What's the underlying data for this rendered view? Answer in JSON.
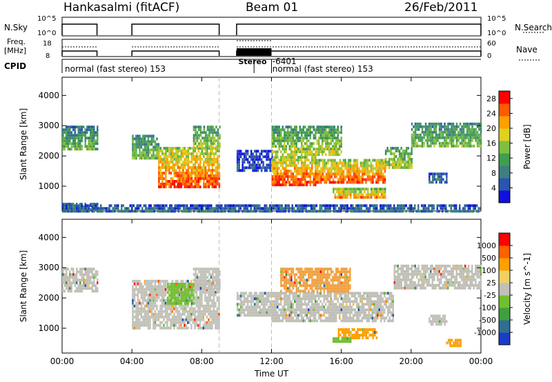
{
  "header": {
    "station": "Hankasalmi (fitACF)",
    "beam": "Beam 01",
    "date": "26/Feb/2011"
  },
  "status_panels": {
    "nsky_label": "N.Sky",
    "nsky_ticks": [
      "10^5",
      "10^0"
    ],
    "nsearch_label": "N.Search",
    "nsearch_ticks": [
      "10^5",
      "10^0"
    ],
    "freq_label_line1": "Freq.",
    "freq_label_line2": "[MHz]",
    "freq_ticks": [
      "18",
      "8"
    ],
    "nave_label": "Nave",
    "nave_ticks": [
      "60",
      "0"
    ],
    "cpid_label": "CPID",
    "cpid_segments": [
      {
        "text": "normal (fast stereo) 153",
        "start_hour": 0,
        "end_hour": 11.0
      },
      {
        "text": "Stereo",
        "start_hour": 11.0,
        "end_hour": 12.0
      },
      {
        "text": "-6401",
        "start_hour": 12.0,
        "end_hour": 12.3
      },
      {
        "text": "normal (fast stereo) 153",
        "start_hour": 12.0,
        "end_hour": 24.0
      }
    ],
    "operation_intervals": [
      [
        0,
        2.0
      ],
      [
        4.0,
        9.0
      ],
      [
        10.0,
        24.0
      ]
    ],
    "stereo_interval": [
      10.0,
      12.0
    ]
  },
  "chart_data": [
    {
      "type": "heatmap",
      "panel": "power",
      "xlabel": "Time UT",
      "ylabel": "Slant Range [km]",
      "x_ticks": [
        "00:00",
        "04:00",
        "08:00",
        "12:00",
        "16:00",
        "20:00",
        "00:00"
      ],
      "xlim": [
        0,
        24
      ],
      "ylim": [
        180,
        4600
      ],
      "y_ticks": [
        1000,
        2000,
        3000,
        4000
      ],
      "dashed_time_markers": [
        9.0,
        12.0
      ],
      "colorbar": {
        "label": "Power [dB]",
        "ticks": [
          4,
          8,
          12,
          16,
          20,
          24,
          28
        ],
        "range": [
          0,
          30
        ],
        "colors": [
          "#1010e0",
          "#2a55b0",
          "#3f7f7f",
          "#3f9f4f",
          "#7fbf3f",
          "#e0d020",
          "#ff9f00",
          "#ff5a00",
          "#ff0000"
        ]
      },
      "echo_regions": [
        {
          "t0": 0.0,
          "t1": 2.0,
          "r0": 2200,
          "r1": 3000,
          "level": 0.4
        },
        {
          "t0": 0.0,
          "t1": 2.0,
          "r0": 200,
          "r1": 450,
          "level": 0.3
        },
        {
          "t0": 4.0,
          "t1": 5.5,
          "r0": 1900,
          "r1": 2700,
          "level": 0.45
        },
        {
          "t0": 5.5,
          "t1": 9.0,
          "r0": 1000,
          "r1": 2300,
          "level": 0.85
        },
        {
          "t0": 7.5,
          "t1": 9.0,
          "r0": 2300,
          "r1": 3000,
          "level": 0.5
        },
        {
          "t0": 10.0,
          "t1": 12.0,
          "r0": 1500,
          "r1": 2200,
          "level": 0.1
        },
        {
          "t0": 12.0,
          "t1": 14.5,
          "r0": 1000,
          "r1": 2000,
          "level": 0.9
        },
        {
          "t0": 12.0,
          "t1": 16.0,
          "r0": 2000,
          "r1": 3000,
          "level": 0.55
        },
        {
          "t0": 14.5,
          "t1": 18.5,
          "r0": 1150,
          "r1": 1900,
          "level": 0.85
        },
        {
          "t0": 15.5,
          "t1": 18.5,
          "r0": 600,
          "r1": 950,
          "level": 0.8
        },
        {
          "t0": 18.5,
          "t1": 20.0,
          "r0": 1600,
          "r1": 2300,
          "level": 0.55
        },
        {
          "t0": 20.0,
          "t1": 24.0,
          "r0": 2300,
          "r1": 3100,
          "level": 0.45
        },
        {
          "t0": 21.0,
          "t1": 22.0,
          "r0": 1100,
          "r1": 1450,
          "level": 0.2
        },
        {
          "t0": 0.0,
          "t1": 24.0,
          "r0": 200,
          "r1": 400,
          "level": 0.2
        }
      ]
    },
    {
      "type": "heatmap",
      "panel": "velocity",
      "xlabel": "Time UT",
      "ylabel": "Slant Range [km]",
      "x_ticks": [
        "00:00",
        "04:00",
        "08:00",
        "12:00",
        "16:00",
        "20:00",
        "00:00"
      ],
      "xlim": [
        0,
        24
      ],
      "ylim": [
        180,
        4600
      ],
      "y_ticks": [
        1000,
        2000,
        3000,
        4000
      ],
      "dashed_time_markers": [
        9.0,
        12.0
      ],
      "colorbar": {
        "label": "Velocity [m s^-1]",
        "tick_labels": [
          "1000",
          "500",
          "100",
          "25",
          "-25",
          "-100",
          "-500",
          "-1000"
        ],
        "colors": [
          "#1a3cc8",
          "#2f6f8f",
          "#3f9f3f",
          "#70c030",
          "#c0c0b8",
          "#f0d060",
          "#ff9f00",
          "#ff6000",
          "#ff0000"
        ]
      },
      "echo_regions": [
        {
          "t0": 0.0,
          "t1": 2.0,
          "r0": 2200,
          "r1": 3000,
          "color": "#c0c0b8"
        },
        {
          "t0": 4.0,
          "t1": 9.0,
          "r0": 1000,
          "r1": 2600,
          "color": "#c0c0b8"
        },
        {
          "t0": 6.0,
          "t1": 7.5,
          "r0": 1800,
          "r1": 2500,
          "color": "#70c030"
        },
        {
          "t0": 7.5,
          "t1": 9.0,
          "r0": 2300,
          "r1": 3000,
          "color": "#c0c0b8"
        },
        {
          "t0": 10.0,
          "t1": 12.0,
          "r0": 1400,
          "r1": 2200,
          "color": "#c0c0b8"
        },
        {
          "t0": 12.0,
          "t1": 19.0,
          "r0": 1200,
          "r1": 2200,
          "color": "#c0c0b8"
        },
        {
          "t0": 12.5,
          "t1": 16.5,
          "r0": 2200,
          "r1": 3000,
          "color": "#f0a040"
        },
        {
          "t0": 19.0,
          "t1": 24.0,
          "r0": 2300,
          "r1": 3100,
          "color": "#c0c0b8"
        },
        {
          "t0": 15.8,
          "t1": 18.0,
          "r0": 700,
          "r1": 1000,
          "color": "#ff9f00"
        },
        {
          "t0": 15.5,
          "t1": 16.5,
          "r0": 550,
          "r1": 700,
          "color": "#70c030"
        },
        {
          "t0": 21.0,
          "t1": 22.0,
          "r0": 1150,
          "r1": 1450,
          "color": "#c0c0b8"
        },
        {
          "t0": 22.0,
          "t1": 22.8,
          "r0": 450,
          "r1": 650,
          "color": "#ff9f00"
        }
      ]
    }
  ]
}
